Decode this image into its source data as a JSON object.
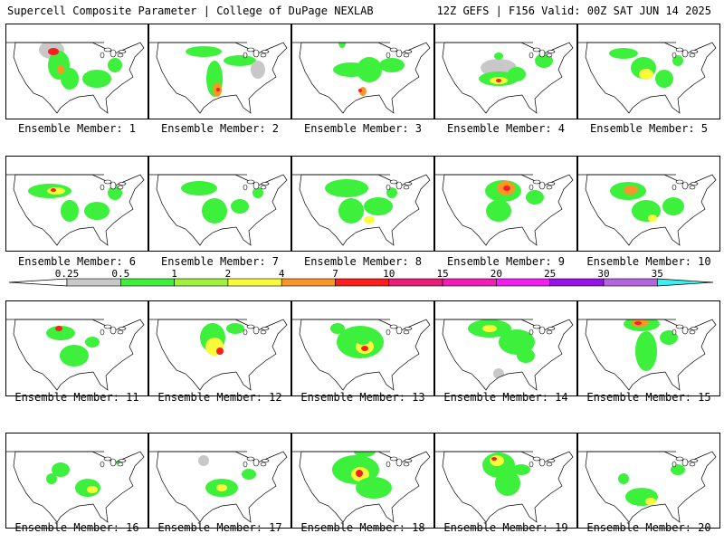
{
  "header": {
    "title": "Supercell Composite Parameter | College of DuPage NEXLAB",
    "run_info": "12Z GEFS | F156 Valid: 00Z SAT JUN 14 2025"
  },
  "colorbar": {
    "labels": [
      "0.25",
      "0.5",
      "1",
      "2",
      "4",
      "7",
      "10",
      "15",
      "20",
      "25",
      "30",
      "35"
    ],
    "colors": [
      "#c8c8c8",
      "#3cf03c",
      "#a0f03c",
      "#fafa3c",
      "#fa9628",
      "#fa1e1e",
      "#e61e78",
      "#f01eb4",
      "#f01ef0",
      "#9614e6",
      "#b464dc",
      "#3cf0f0"
    ]
  },
  "map_colors": {
    "land": "#ffffff",
    "border": "#000000",
    "light": "#c8c8c8",
    "green": "#3cf03c",
    "lime": "#a0f03c",
    "yellow": "#fafa3c",
    "orange": "#fa9628",
    "red": "#fa1e1e"
  },
  "panels": [
    {
      "label": "Ensemble Member: 1"
    },
    {
      "label": "Ensemble Member: 2"
    },
    {
      "label": "Ensemble Member: 3"
    },
    {
      "label": "Ensemble Member: 4"
    },
    {
      "label": "Ensemble Member: 5"
    },
    {
      "label": "Ensemble Member: 6"
    },
    {
      "label": "Ensemble Member: 7"
    },
    {
      "label": "Ensemble Member: 8"
    },
    {
      "label": "Ensemble Member: 9"
    },
    {
      "label": "Ensemble Member: 10"
    },
    {
      "label": "Ensemble Member: 11"
    },
    {
      "label": "Ensemble Member: 12"
    },
    {
      "label": "Ensemble Member: 13"
    },
    {
      "label": "Ensemble Member: 14"
    },
    {
      "label": "Ensemble Member: 15"
    },
    {
      "label": "Ensemble Member: 16"
    },
    {
      "label": "Ensemble Member: 17"
    },
    {
      "label": "Ensemble Member: 18"
    },
    {
      "label": "Ensemble Member: 19"
    },
    {
      "label": "Ensemble Member: 20"
    }
  ]
}
